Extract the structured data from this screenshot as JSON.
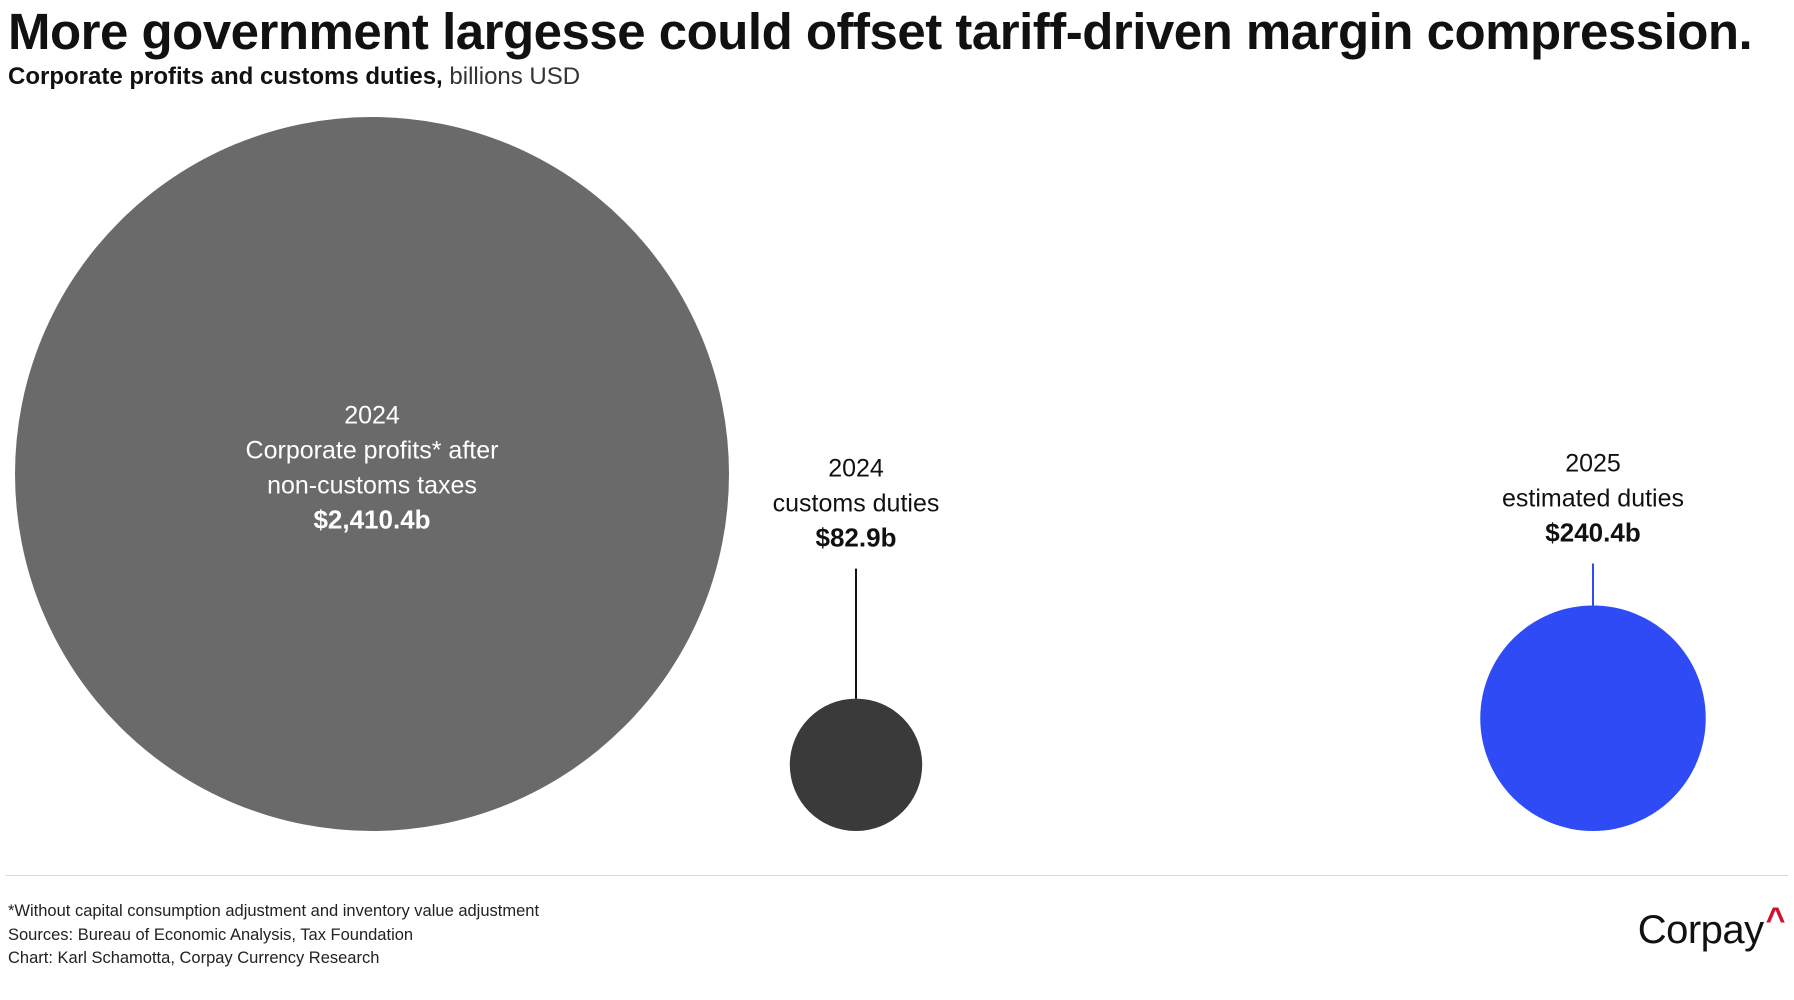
{
  "title": "More government largesse could offset tariff-driven margin compression.",
  "subtitle": {
    "bold": "Corporate profits and customs duties,",
    "light": "billions USD"
  },
  "chart_data": {
    "type": "bubble",
    "title": "More government largesse could offset tariff-driven margin compression.",
    "subtitle": "Corporate profits and customs duties, billions USD",
    "units": "billions USD",
    "bubbles": [
      {
        "id": "profits-2024",
        "value": 2410.4,
        "label_lines": [
          "2024",
          "Corporate profits* after",
          "non-customs taxes"
        ],
        "value_label": "$2,410.4b",
        "color": "#6a6a6a",
        "label_placement": "inside",
        "label_color": "#ffffff"
      },
      {
        "id": "duties-2024",
        "value": 82.9,
        "label_lines": [
          "2024",
          "customs duties"
        ],
        "value_label": "$82.9b",
        "color": "#3a3a3a",
        "label_placement": "above",
        "label_color": "#111111",
        "leader_color": "#111111"
      },
      {
        "id": "duties-2025",
        "value": 240.4,
        "label_lines": [
          "2025",
          "estimated duties"
        ],
        "value_label": "$240.4b",
        "color": "#2f4bf5",
        "label_placement": "above",
        "label_color": "#111111",
        "leader_color": "#2f4bf5"
      }
    ]
  },
  "footnotes": {
    "note": "*Without capital consumption adjustment and inventory value adjustment",
    "sources": "Sources: Bureau of Economic Analysis, Tax Foundation",
    "credit": "Chart: Karl Schamotta, Corpay Currency Research"
  },
  "logo": {
    "text": "Corpay",
    "caret": "^",
    "caret_color": "#d0102f"
  }
}
